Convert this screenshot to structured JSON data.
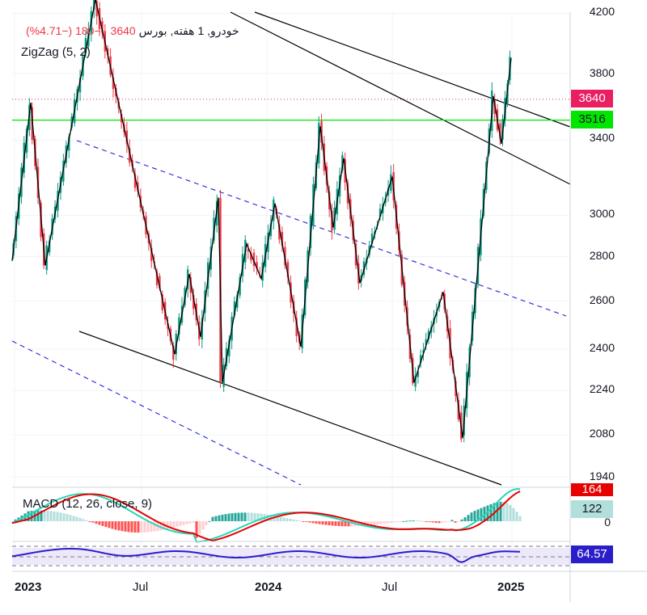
{
  "legend": {
    "symbol": "خودرو, 1 هفته, بورس",
    "last_price": "3640",
    "change": "−180 (−4.71%)",
    "zigzag": "ZigZag (5, 2)",
    "macd": "MACD (12, 26, close, 9)"
  },
  "price_tags": {
    "last": "3640",
    "level": "3516",
    "macd_red": "164",
    "macd_teal": "122",
    "rsi": "64.57"
  },
  "colors": {
    "up": "#089981",
    "down": "#f23645",
    "level_line": "#00e600",
    "dotted_line": "#e91e63",
    "trend_solid": "#000000",
    "trend_dashed": "#2323d8",
    "macd_line": "#26d7b7",
    "signal_line": "#e60000",
    "rsi_line": "#2a1ec8",
    "rsi_tag": "#2a1ec8"
  },
  "chart_data": {
    "type": "candlestick",
    "price_axis": {
      "ticks": [
        4200,
        3800,
        3400,
        3000,
        2800,
        2600,
        2400,
        2240,
        2080,
        1940
      ],
      "scale": "log"
    },
    "time_axis": {
      "labels": [
        "2023",
        "Jul",
        "2024",
        "Jul",
        "2025"
      ]
    },
    "zigzag_pivots": [
      {
        "date": "2022-12",
        "price": 2780
      },
      {
        "date": "2023-01",
        "price": 3620
      },
      {
        "date": "2023-03",
        "price": 2760
      },
      {
        "date": "2023-05",
        "price": 4300
      },
      {
        "date": "2023-08",
        "price": 2380
      },
      {
        "date": "2023-09",
        "price": 2720
      },
      {
        "date": "2023-10",
        "price": 2450
      },
      {
        "date": "2023-10",
        "price": 3090
      },
      {
        "date": "2023-12",
        "price": 2270
      },
      {
        "date": "2024-01",
        "price": 2860
      },
      {
        "date": "2024-02",
        "price": 2700
      },
      {
        "date": "2024-03",
        "price": 3060
      },
      {
        "date": "2024-04",
        "price": 2410
      },
      {
        "date": "2024-05",
        "price": 3480
      },
      {
        "date": "2024-06",
        "price": 2940
      },
      {
        "date": "2024-06",
        "price": 3300
      },
      {
        "date": "2024-07",
        "price": 2680
      },
      {
        "date": "2024-08",
        "price": 3200
      },
      {
        "date": "2024-09",
        "price": 2270
      },
      {
        "date": "2024-10",
        "price": 2640
      },
      {
        "date": "2024-11",
        "price": 2070
      },
      {
        "date": "2024-12",
        "price": 3660
      },
      {
        "date": "2025-01",
        "price": 3380
      },
      {
        "date": "2025-01",
        "price": 3900
      }
    ],
    "horizontal_levels": [
      3640,
      3516
    ],
    "macd": {
      "macd_value": 164,
      "histogram_value": 122
    },
    "rsi": {
      "value": 64.57
    }
  }
}
